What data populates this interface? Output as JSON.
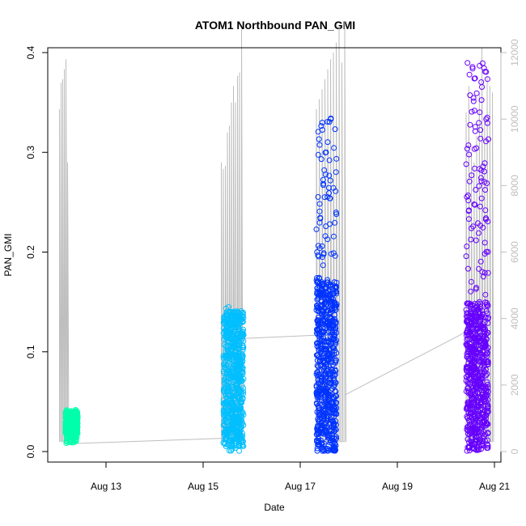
{
  "chart_data": {
    "type": "scatter",
    "title": "ATOM1 Northbound PAN_GMI",
    "xlabel": "Date",
    "ylabel": "PAN_GMI",
    "x_axis": {
      "scale": "date",
      "range": [
        "2014-08-12",
        "2014-08-21"
      ],
      "ticks": [
        {
          "value": "2014-08-13",
          "label": "Aug 13"
        },
        {
          "value": "2014-08-15",
          "label": "Aug 15"
        },
        {
          "value": "2014-08-17",
          "label": "Aug 17"
        },
        {
          "value": "2014-08-19",
          "label": "Aug 19"
        },
        {
          "value": "2014-08-21",
          "label": "Aug 21"
        }
      ]
    },
    "y_axis_left": {
      "range": [
        0,
        0.4
      ],
      "ticks": [
        0.0,
        0.1,
        0.2,
        0.3,
        0.4
      ],
      "tick_labels": [
        "0.0",
        "0.1",
        "0.2",
        "0.3",
        "0.4"
      ]
    },
    "y_axis_right": {
      "color": "#bebebe",
      "range": [
        0,
        12000
      ],
      "ticks": [
        0,
        2000,
        4000,
        6000,
        8000,
        10000,
        12000
      ],
      "tick_labels": [
        "0",
        "2000",
        "4000",
        "6000",
        "8000",
        "10000",
        "12000"
      ]
    },
    "grid": false,
    "series": [
      {
        "color": "#00ffaa",
        "marker": "circle",
        "clusters": [
          {
            "start": "2014-08-12T04:00",
            "end": "2014-08-12T10:00",
            "y_min": 0.008,
            "y_max": 0.042,
            "dense_min": 0.018,
            "dense_max": 0.04
          }
        ]
      },
      {
        "color": "#00bfff",
        "marker": "circle",
        "clusters": [
          {
            "start": "2014-08-15T10:00",
            "end": "2014-08-15T20:00",
            "y_min": 0.0,
            "y_max": 0.145,
            "dense_min": 0.005,
            "dense_max": 0.14
          }
        ]
      },
      {
        "color": "#0033ff",
        "marker": "circle",
        "clusters": [
          {
            "start": "2014-08-17T08:00",
            "end": "2014-08-17T18:00",
            "y_min": 0.0,
            "y_max": 0.335,
            "dense_min": 0.0,
            "dense_max": 0.17
          }
        ]
      },
      {
        "color": "#6600ff",
        "marker": "circle",
        "clusters": [
          {
            "start": "2014-08-20T10:00",
            "end": "2014-08-20T21:00",
            "y_min": 0.0,
            "y_max": 0.39,
            "dense_min": 0.0,
            "dense_max": 0.15
          }
        ]
      }
    ],
    "secondary_series": {
      "color": "#bebebe",
      "type": "line",
      "axis": "right",
      "bursts": [
        {
          "start": "2014-08-12T01:00",
          "end": "2014-08-12T05:00",
          "peaks": [
            10300,
            11100,
            11200,
            11500,
            11800,
            8700
          ],
          "base": 300
        },
        {
          "start": "2014-08-15T09:00",
          "end": "2014-08-15T19:00",
          "peaks": [
            8700,
            8500,
            8600,
            9600,
            9800,
            10500,
            11000,
            10500,
            11300,
            11400,
            12700
          ],
          "base": 300
        },
        {
          "start": "2014-08-17T08:00",
          "end": "2014-08-17T22:00",
          "peaks": [
            10300,
            10600,
            10900,
            11200,
            11500,
            11800,
            12000,
            12300,
            12800,
            11700,
            12950
          ],
          "base": 300
        },
        {
          "start": "2014-08-20T10:00",
          "end": "2014-08-20T23:00",
          "peaks": [
            10200,
            11000,
            9000,
            8700,
            9500,
            10800,
            12150,
            10000,
            11300,
            11000,
            10800
          ],
          "base": 300
        }
      ],
      "connectors": [
        {
          "from": {
            "x": "2014-08-12T08:00",
            "y": 240
          },
          "to": {
            "x": "2014-08-15T10:00",
            "y": 400
          }
        },
        {
          "from": {
            "x": "2014-08-15T20:00",
            "y": 3400
          },
          "to": {
            "x": "2014-08-17T08:00",
            "y": 3500
          }
        },
        {
          "from": {
            "x": "2014-08-17T22:00",
            "y": 1700
          },
          "to": {
            "x": "2014-08-20T10:00",
            "y": 3600
          }
        }
      ]
    }
  }
}
